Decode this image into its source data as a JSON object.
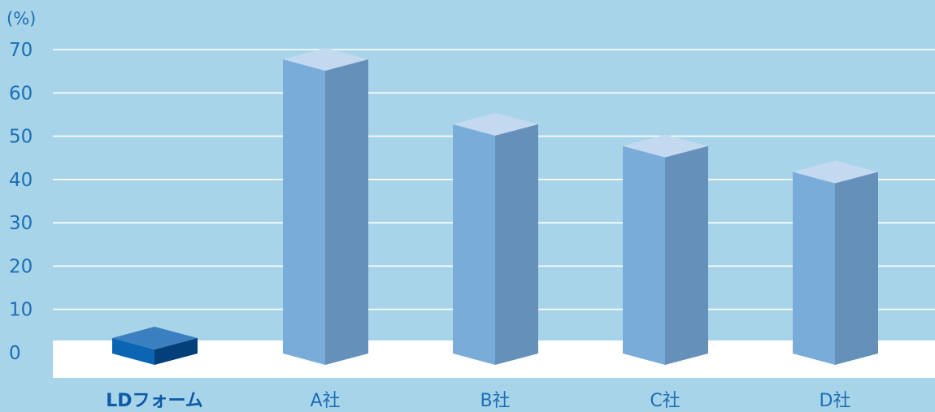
{
  "chart_data": {
    "type": "bar",
    "title": "",
    "xlabel": "",
    "ylabel": "(%)",
    "ylim": [
      0,
      70
    ],
    "yticks": [
      "0",
      "10",
      "20",
      "30",
      "40",
      "50",
      "60",
      "70"
    ],
    "grid": true,
    "categories": [
      "LDフォーム",
      "A社",
      "B社",
      "C社",
      "D社"
    ],
    "values": [
      6,
      70,
      55,
      50,
      44
    ],
    "highlight_category": "LDフォーム"
  },
  "colors": {
    "background": "#a8d4e9",
    "grid": "#ffffff",
    "baseline_band": "#ffffff",
    "text": "#1c6fb6",
    "highlight_front": "#0b65b3",
    "highlight_side": "#033f78",
    "highlight_top": "#3a7fc0",
    "bar_front": "#7aacda",
    "bar_side": "#6490ba",
    "bar_top": "#c3d9ef"
  }
}
